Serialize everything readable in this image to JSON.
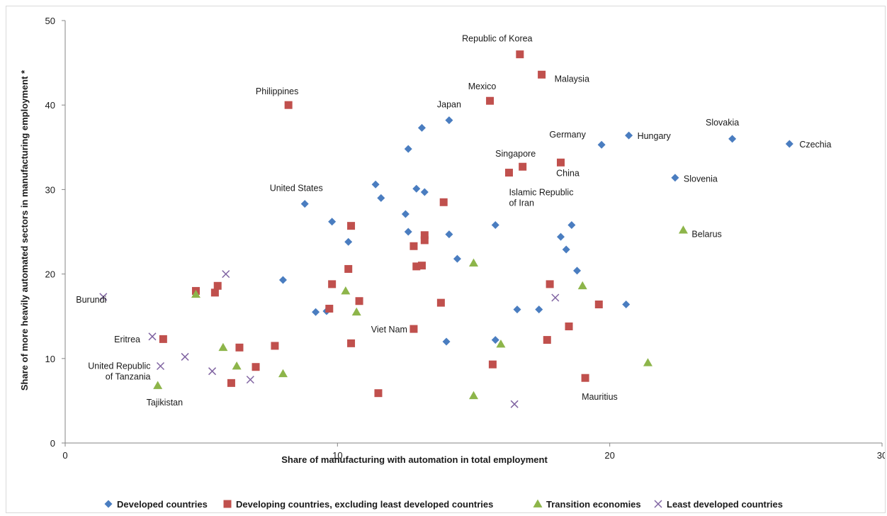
{
  "chart_data": {
    "type": "scatter",
    "title": "",
    "xlabel": "Share of manufacturing with automation in total employment",
    "ylabel": "Share of more heavily automated sectors in manufacturing employment *",
    "xlim": [
      0,
      30
    ],
    "ylim": [
      0,
      50
    ],
    "x_ticks": [
      "0",
      "10",
      "20",
      "30"
    ],
    "y_ticks": [
      "0",
      "10",
      "20",
      "30",
      "40",
      "50"
    ],
    "grid": false,
    "legend_position": "bottom",
    "series": [
      {
        "name": "Developed countries",
        "marker": "diamond",
        "color": "#4a7dc0",
        "points": [
          {
            "x": 8.8,
            "y": 28.3,
            "label": "United States"
          },
          {
            "x": 14.1,
            "y": 38.2,
            "label": "Japan"
          },
          {
            "x": 19.7,
            "y": 35.3,
            "label": "Germany"
          },
          {
            "x": 20.7,
            "y": 36.4,
            "label": "Hungary"
          },
          {
            "x": 24.5,
            "y": 36.0,
            "label": "Slovakia"
          },
          {
            "x": 26.6,
            "y": 35.4,
            "label": "Czechia"
          },
          {
            "x": 22.4,
            "y": 31.4,
            "label": "Slovenia"
          },
          {
            "x": 13.1,
            "y": 37.3
          },
          {
            "x": 12.6,
            "y": 34.8
          },
          {
            "x": 11.4,
            "y": 30.6
          },
          {
            "x": 11.6,
            "y": 29.0
          },
          {
            "x": 12.9,
            "y": 30.1
          },
          {
            "x": 13.2,
            "y": 29.7
          },
          {
            "x": 12.5,
            "y": 27.1
          },
          {
            "x": 9.8,
            "y": 26.2
          },
          {
            "x": 12.6,
            "y": 25.0
          },
          {
            "x": 10.4,
            "y": 23.8
          },
          {
            "x": 14.1,
            "y": 24.7
          },
          {
            "x": 15.8,
            "y": 25.8
          },
          {
            "x": 14.4,
            "y": 21.8
          },
          {
            "x": 18.2,
            "y": 24.4
          },
          {
            "x": 18.6,
            "y": 25.8
          },
          {
            "x": 18.4,
            "y": 22.9
          },
          {
            "x": 18.8,
            "y": 20.4
          },
          {
            "x": 8.0,
            "y": 19.3
          },
          {
            "x": 9.2,
            "y": 15.5
          },
          {
            "x": 9.6,
            "y": 15.6
          },
          {
            "x": 16.6,
            "y": 15.8
          },
          {
            "x": 17.4,
            "y": 15.8
          },
          {
            "x": 20.6,
            "y": 16.4
          },
          {
            "x": 14.0,
            "y": 12.0
          },
          {
            "x": 15.8,
            "y": 12.2
          }
        ]
      },
      {
        "name": "Developing countries, excluding least developed countries",
        "marker": "square",
        "color": "#c0504d",
        "points": [
          {
            "x": 16.7,
            "y": 46.0,
            "label": "Republic of Korea"
          },
          {
            "x": 17.5,
            "y": 43.6,
            "label": "Malaysia"
          },
          {
            "x": 15.6,
            "y": 40.5,
            "label": "Mexico"
          },
          {
            "x": 8.2,
            "y": 40.0,
            "label": "Philippines"
          },
          {
            "x": 16.8,
            "y": 32.7,
            "label": "Singapore"
          },
          {
            "x": 18.2,
            "y": 33.2,
            "label": "China"
          },
          {
            "x": 16.3,
            "y": 32.0,
            "label": "Islamic Republic of Iran"
          },
          {
            "x": 12.8,
            "y": 13.5,
            "label": "Viet Nam"
          },
          {
            "x": 19.1,
            "y": 7.7,
            "label": "Mauritius"
          },
          {
            "x": 13.9,
            "y": 28.5
          },
          {
            "x": 10.5,
            "y": 25.7
          },
          {
            "x": 13.2,
            "y": 24.6
          },
          {
            "x": 13.2,
            "y": 24.0
          },
          {
            "x": 12.8,
            "y": 23.3
          },
          {
            "x": 10.4,
            "y": 20.6
          },
          {
            "x": 12.9,
            "y": 20.9
          },
          {
            "x": 13.1,
            "y": 21.0
          },
          {
            "x": 9.8,
            "y": 18.8
          },
          {
            "x": 10.8,
            "y": 16.8
          },
          {
            "x": 9.7,
            "y": 15.9
          },
          {
            "x": 13.8,
            "y": 16.6
          },
          {
            "x": 17.8,
            "y": 18.8
          },
          {
            "x": 19.6,
            "y": 16.4
          },
          {
            "x": 18.5,
            "y": 13.8
          },
          {
            "x": 17.7,
            "y": 12.2
          },
          {
            "x": 10.5,
            "y": 11.8
          },
          {
            "x": 15.7,
            "y": 9.3
          },
          {
            "x": 11.5,
            "y": 5.9
          },
          {
            "x": 4.8,
            "y": 18.0
          },
          {
            "x": 5.6,
            "y": 18.6
          },
          {
            "x": 5.5,
            "y": 17.8
          },
          {
            "x": 3.6,
            "y": 12.3
          },
          {
            "x": 6.4,
            "y": 11.3
          },
          {
            "x": 7.7,
            "y": 11.5
          },
          {
            "x": 7.0,
            "y": 9.0
          },
          {
            "x": 6.1,
            "y": 7.1
          }
        ]
      },
      {
        "name": "Transition economies",
        "marker": "triangle",
        "color": "#8db54a",
        "points": [
          {
            "x": 22.7,
            "y": 25.2,
            "label": "Belarus"
          },
          {
            "x": 3.4,
            "y": 6.8,
            "label": "Tajikistan"
          },
          {
            "x": 15.0,
            "y": 21.3
          },
          {
            "x": 10.3,
            "y": 18.0
          },
          {
            "x": 10.7,
            "y": 15.5
          },
          {
            "x": 19.0,
            "y": 18.6
          },
          {
            "x": 16.0,
            "y": 11.7
          },
          {
            "x": 21.4,
            "y": 9.5
          },
          {
            "x": 15.0,
            "y": 5.6
          },
          {
            "x": 4.8,
            "y": 17.6
          },
          {
            "x": 5.8,
            "y": 11.3
          },
          {
            "x": 6.3,
            "y": 9.1
          },
          {
            "x": 8.0,
            "y": 8.2
          }
        ]
      },
      {
        "name": "Least developed countries",
        "marker": "cross",
        "color": "#8064a2",
        "points": [
          {
            "x": 1.4,
            "y": 17.3,
            "label": "Burundi"
          },
          {
            "x": 3.2,
            "y": 12.6,
            "label": "Eritrea"
          },
          {
            "x": 3.5,
            "y": 9.1,
            "label": "United Republic of Tanzania"
          },
          {
            "x": 5.9,
            "y": 20.0
          },
          {
            "x": 4.4,
            "y": 10.2
          },
          {
            "x": 5.4,
            "y": 8.5
          },
          {
            "x": 6.8,
            "y": 7.5
          },
          {
            "x": 18.0,
            "y": 17.2
          },
          {
            "x": 16.5,
            "y": 4.6
          }
        ]
      }
    ]
  }
}
